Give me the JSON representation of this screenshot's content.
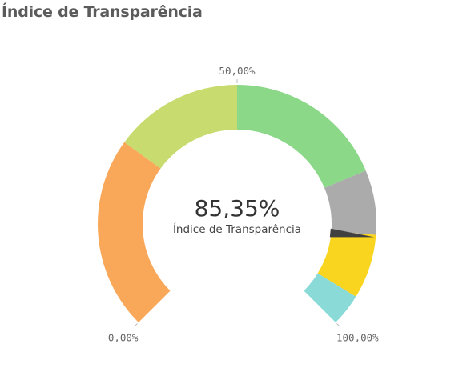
{
  "title": "Índice de Transparência",
  "chart_data": {
    "type": "gauge",
    "min": 0,
    "max": 100,
    "value": 85.35,
    "value_label": "85,35%",
    "measure_label": "Índice de Transparência",
    "tick_labels": {
      "min": "0,00%",
      "mid": "50,00%",
      "max": "100,00%"
    },
    "bands": [
      {
        "from": 0,
        "to": 30,
        "color": "#f9a85a"
      },
      {
        "from": 30,
        "to": 50,
        "color": "#c8db6e"
      },
      {
        "from": 50,
        "to": 75,
        "color": "#8bd889"
      },
      {
        "from": 75,
        "to": 85,
        "color": "#ababab"
      },
      {
        "from": 85,
        "to": 95,
        "color": "#f9d51f"
      },
      {
        "from": 95,
        "to": 100,
        "color": "#8adad8"
      }
    ],
    "needle_color": "#404040"
  }
}
